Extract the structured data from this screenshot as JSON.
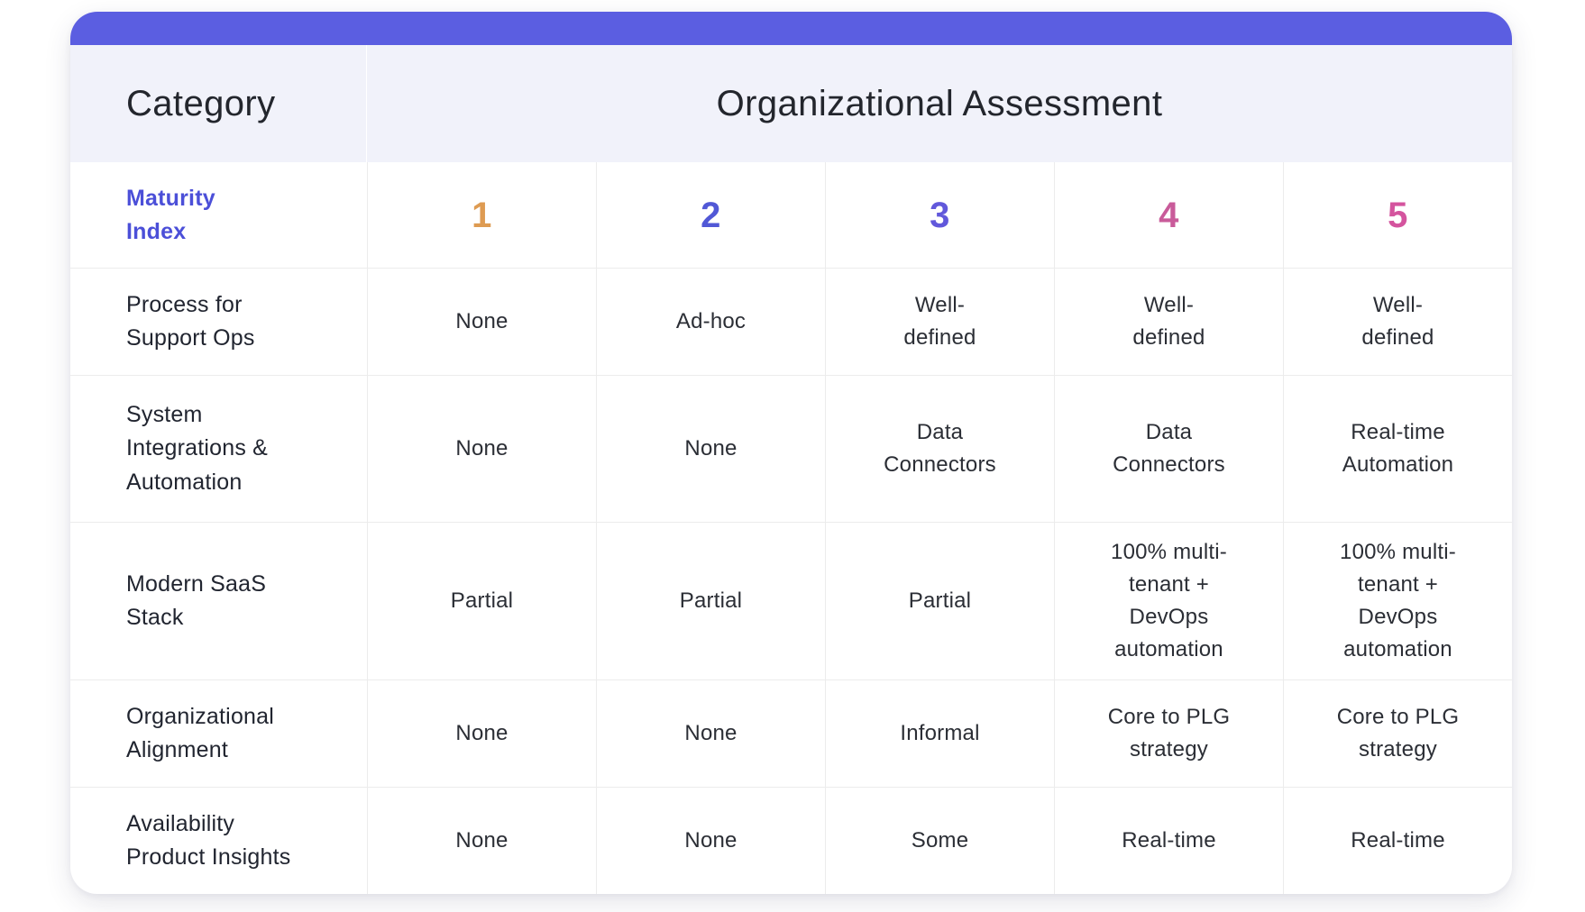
{
  "card": {
    "accent_bar_color": "#5b5ee1"
  },
  "header": {
    "category_label": "Category",
    "assessment_label": "Organizational Assessment"
  },
  "table": {
    "row_header": {
      "label": "Maturity\nIndex",
      "color": "#4b4fd8"
    },
    "maturity_levels": [
      {
        "value": "1",
        "color": "#de9b52"
      },
      {
        "value": "2",
        "color": "#5158d6"
      },
      {
        "value": "3",
        "color": "#6158db"
      },
      {
        "value": "4",
        "color": "#c95b9a"
      },
      {
        "value": "5",
        "color": "#d4549e"
      }
    ],
    "rows": [
      {
        "category": "Process for\nSupport Ops",
        "values": [
          "None",
          "Ad-hoc",
          "Well-\ndefined",
          "Well-\ndefined",
          "Well-\ndefined"
        ]
      },
      {
        "category": "System\nIntegrations &\nAutomation",
        "values": [
          "None",
          "None",
          "Data\nConnectors",
          "Data\nConnectors",
          "Real-time\nAutomation"
        ]
      },
      {
        "category": "Modern SaaS\nStack",
        "values": [
          "Partial",
          "Partial",
          "Partial",
          "100% multi-\ntenant +\nDevOps\nautomation",
          "100% multi-\ntenant +\nDevOps\nautomation"
        ]
      },
      {
        "category": "Organizational\nAlignment",
        "values": [
          "None",
          "None",
          "Informal",
          "Core to PLG\nstrategy",
          "Core to PLG\nstrategy"
        ]
      },
      {
        "category": "Availability\nProduct Insights",
        "values": [
          "None",
          "None",
          "Some",
          "Real-time",
          "Real-time"
        ]
      }
    ]
  },
  "chart_data": {
    "type": "table",
    "title": "Organizational Assessment",
    "corner_label": "Category",
    "columns": [
      "Maturity Index",
      "1",
      "2",
      "3",
      "4",
      "5"
    ],
    "rows": [
      [
        "Process for Support Ops",
        "None",
        "Ad-hoc",
        "Well-defined",
        "Well-defined",
        "Well-defined"
      ],
      [
        "System Integrations & Automation",
        "None",
        "None",
        "Data Connectors",
        "Data Connectors",
        "Real-time Automation"
      ],
      [
        "Modern SaaS Stack",
        "Partial",
        "Partial",
        "Partial",
        "100% multi-tenant + DevOps automation",
        "100% multi-tenant + DevOps automation"
      ],
      [
        "Organizational Alignment",
        "None",
        "None",
        "Informal",
        "Core to PLG strategy",
        "Core to PLG strategy"
      ],
      [
        "Availability Product Insights",
        "None",
        "None",
        "Some",
        "Real-time",
        "Real-time"
      ]
    ]
  }
}
